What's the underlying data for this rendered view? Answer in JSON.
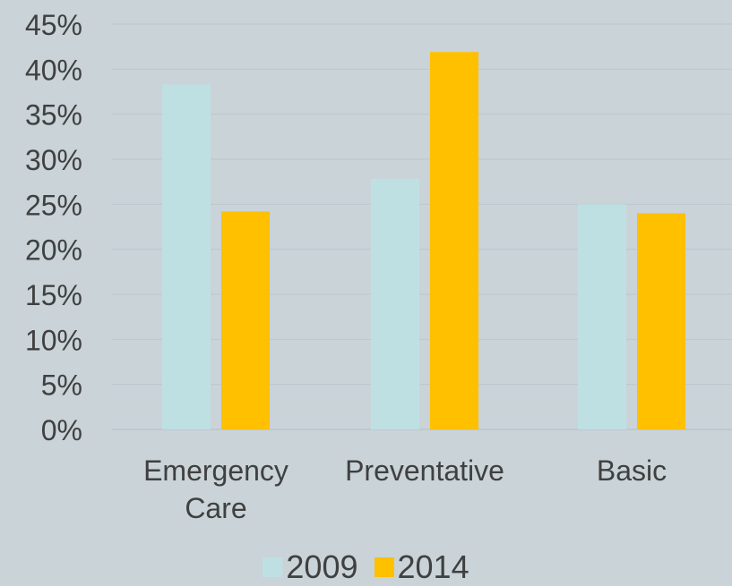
{
  "chart_data": {
    "type": "bar",
    "categories": [
      "Emergency Care",
      "Preventative",
      "Basic"
    ],
    "series": [
      {
        "name": "2009",
        "values": [
          38.3,
          27.8,
          25.0
        ],
        "color": "#bfe0e3"
      },
      {
        "name": "2014",
        "values": [
          24.2,
          41.9,
          24.0
        ],
        "color": "#ffc000"
      }
    ],
    "ylim": [
      0,
      45
    ],
    "yticks": [
      "0%",
      "5%",
      "10%",
      "15%",
      "20%",
      "25%",
      "30%",
      "35%",
      "40%",
      "45%"
    ],
    "grid": true,
    "legend": "bottom"
  }
}
